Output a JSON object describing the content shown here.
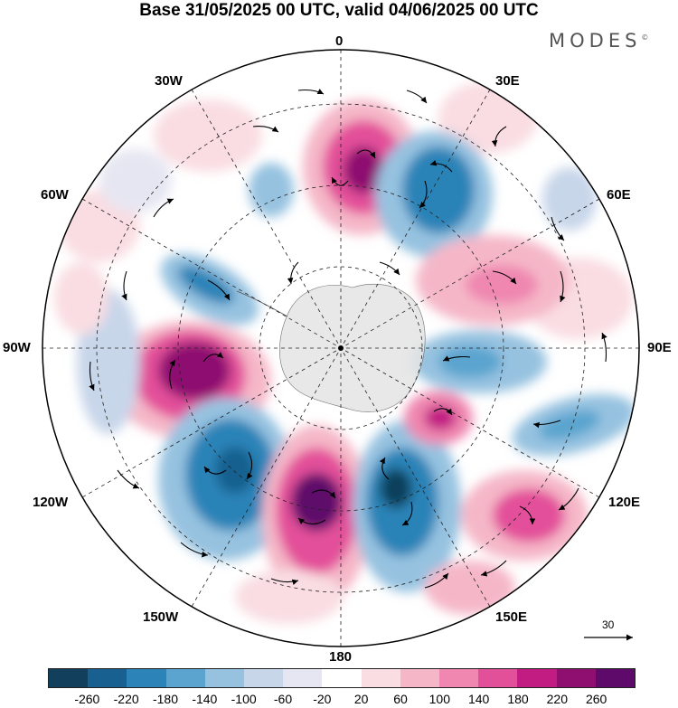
{
  "title": "Base 31/05/2025 00 UTC, valid 04/06/2025 00 UTC",
  "brand": "MODES",
  "brand_mark": "©",
  "longitude_labels": {
    "l0": "0",
    "l30e": "30E",
    "l60e": "60E",
    "l90e": "90E",
    "l120e": "120E",
    "l150e": "150E",
    "l180": "180",
    "l150w": "150W",
    "l120w": "120W",
    "l90w": "90W",
    "l60w": "60W",
    "l30w": "30W"
  },
  "reference_vector_label": "30",
  "colorbar": {
    "colors": [
      "#113f5c",
      "#17608f",
      "#2c83b7",
      "#5aa4cf",
      "#96c2e0",
      "#c8d6ea",
      "#e6e6f2",
      "#ffffff",
      "#f9dde2",
      "#f5b7c8",
      "#ef87b0",
      "#e3509a",
      "#c21c83",
      "#8e0f70",
      "#5e0a6a"
    ],
    "ticks": [
      "-260",
      "-220",
      "-180",
      "-140",
      "-100",
      "-60",
      "-20",
      "20",
      "60",
      "100",
      "140",
      "180",
      "220",
      "260"
    ]
  },
  "map": {
    "projection": "south-polar-stereographic",
    "field_colors": {
      "strong_pos": "#8e0f70",
      "pos": "#e3509a",
      "weak_pos": "#f5b7c8",
      "strong_neg": "#17608f",
      "neg": "#5aa4cf",
      "weak_neg": "#c8d6ea",
      "land": "#e4e4e4"
    }
  }
}
